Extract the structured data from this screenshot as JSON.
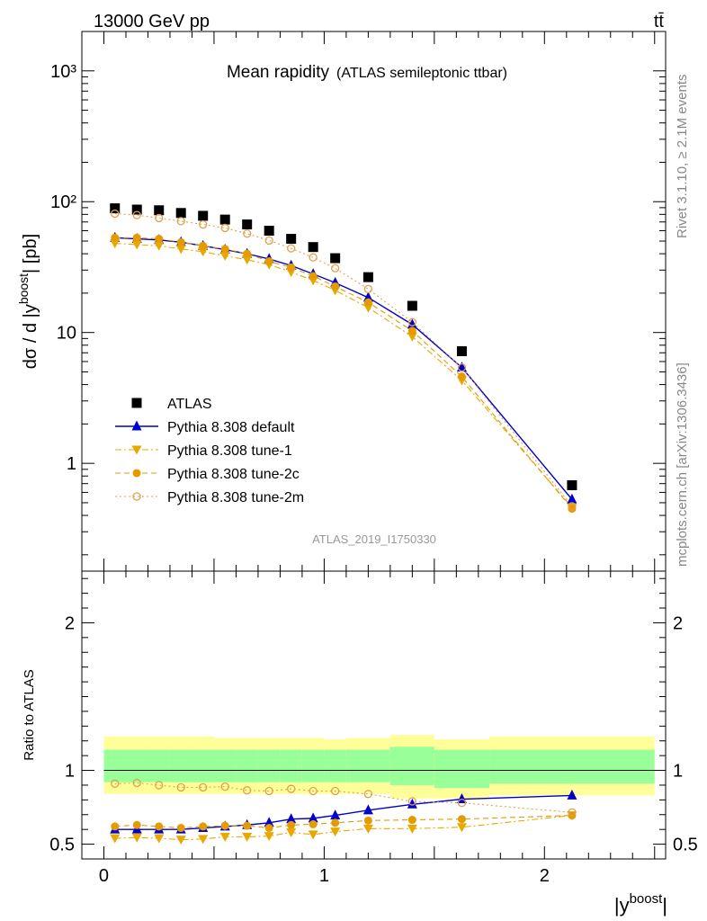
{
  "header": {
    "energy_label": "13000 GeV pp",
    "process_label": "tt̄",
    "side_label_top": "Rivet 3.1.10, ≥ 2.1M events",
    "side_label_bottom": "mcplots.cern.ch [arXiv:1306.3436]"
  },
  "chart_data": [
    {
      "type": "scatter",
      "title": "Mean rapidity",
      "subtitle": "(ATLAS semileptonic ttbar)",
      "ylabel": "dσ / d |y^boost| [pb]",
      "analysis_label": "ATLAS_2019_I1750330",
      "y_scale": "log",
      "xlim": [
        -0.1,
        2.55
      ],
      "ylim": [
        0.15,
        2000
      ],
      "x_ticks": [
        "0",
        "1",
        "2"
      ],
      "y_ticks": [
        {
          "value": 1,
          "label": "1"
        },
        {
          "value": 10,
          "label": "10"
        },
        {
          "value": 100,
          "label": "10²"
        },
        {
          "value": 1000,
          "label": "10³"
        }
      ],
      "legend_position": "bottom-left",
      "x": [
        0.05,
        0.15,
        0.25,
        0.35,
        0.45,
        0.55,
        0.65,
        0.75,
        0.85,
        0.95,
        1.05,
        1.2,
        1.4,
        1.625,
        2.125
      ],
      "x_bins": [
        [
          0,
          0.1
        ],
        [
          0.1,
          0.2
        ],
        [
          0.2,
          0.3
        ],
        [
          0.3,
          0.4
        ],
        [
          0.4,
          0.5
        ],
        [
          0.5,
          0.6
        ],
        [
          0.6,
          0.7
        ],
        [
          0.7,
          0.8
        ],
        [
          0.8,
          0.9
        ],
        [
          0.9,
          1.0
        ],
        [
          1.0,
          1.1
        ],
        [
          1.1,
          1.3
        ],
        [
          1.3,
          1.5
        ],
        [
          1.5,
          1.75
        ],
        [
          1.75,
          2.5
        ]
      ],
      "series": [
        {
          "name": "ATLAS",
          "color": "#000000",
          "marker": "square",
          "line": "none",
          "values": [
            89,
            87,
            86,
            82,
            78,
            73,
            67,
            60,
            52,
            45,
            37,
            26.5,
            16,
            7.2,
            0.68
          ]
        },
        {
          "name": "Pythia 8.308 default",
          "color": "#0000cc",
          "marker": "triangle-up",
          "line": "solid",
          "values": [
            53,
            52,
            51,
            49,
            46,
            43,
            40,
            36.5,
            32.5,
            28,
            24,
            18.5,
            11.5,
            5.4,
            0.53
          ]
        },
        {
          "name": "Pythia 8.308 tune-1",
          "color": "#e8a800",
          "marker": "triangle-down",
          "line": "dashdot",
          "values": [
            48,
            47,
            46,
            43.5,
            41.5,
            38.5,
            36,
            33,
            29,
            25,
            21,
            15.5,
            9.3,
            4.3,
            0.46
          ]
        },
        {
          "name": "Pythia 8.308 tune-2c",
          "color": "#e39b00",
          "marker": "circle",
          "line": "dashed",
          "values": [
            53,
            53,
            52,
            49,
            46,
            43.5,
            40,
            35,
            31.5,
            27,
            22.5,
            17,
            10.3,
            4.6,
            0.45
          ]
        },
        {
          "name": "Pythia 8.308 tune-2m",
          "color": "#e0a050",
          "marker": "circle-open",
          "line": "dotted",
          "values": [
            81,
            79,
            75,
            71,
            67,
            63,
            57,
            50.5,
            44,
            37.5,
            31,
            21.5,
            12,
            5.4,
            0.47
          ]
        }
      ]
    },
    {
      "type": "line",
      "ylabel": "Ratio to ATLAS",
      "xlabel": "|y^boost|",
      "xlim": [
        -0.1,
        2.55
      ],
      "ylim": [
        0.4,
        2.35
      ],
      "x_ticks": [
        "0",
        "1",
        "2"
      ],
      "y_ticks": [
        {
          "value": 0.5,
          "label": "0.5"
        },
        {
          "value": 1,
          "label": "1"
        },
        {
          "value": 2,
          "label": "2"
        }
      ],
      "x": [
        0.05,
        0.15,
        0.25,
        0.35,
        0.45,
        0.55,
        0.65,
        0.75,
        0.85,
        0.95,
        1.05,
        1.2,
        1.4,
        1.625,
        2.125
      ],
      "x_bins": [
        [
          0,
          0.1
        ],
        [
          0.1,
          0.2
        ],
        [
          0.2,
          0.3
        ],
        [
          0.3,
          0.4
        ],
        [
          0.4,
          0.5
        ],
        [
          0.5,
          0.6
        ],
        [
          0.6,
          0.7
        ],
        [
          0.7,
          0.8
        ],
        [
          0.8,
          0.9
        ],
        [
          0.9,
          1.0
        ],
        [
          1.0,
          1.1
        ],
        [
          1.1,
          1.3
        ],
        [
          1.3,
          1.5
        ],
        [
          1.5,
          1.75
        ],
        [
          1.75,
          2.5
        ]
      ],
      "band_total": [
        [
          0.84,
          1.23
        ],
        [
          0.84,
          1.23
        ],
        [
          0.84,
          1.23
        ],
        [
          0.84,
          1.23
        ],
        [
          0.84,
          1.23
        ],
        [
          0.84,
          1.22
        ],
        [
          0.84,
          1.22
        ],
        [
          0.84,
          1.22
        ],
        [
          0.84,
          1.22
        ],
        [
          0.84,
          1.22
        ],
        [
          0.84,
          1.21
        ],
        [
          0.84,
          1.22
        ],
        [
          0.81,
          1.24
        ],
        [
          0.81,
          1.21
        ],
        [
          0.83,
          1.23
        ]
      ],
      "band_stat": [
        [
          0.92,
          1.14
        ],
        [
          0.92,
          1.14
        ],
        [
          0.92,
          1.14
        ],
        [
          0.92,
          1.14
        ],
        [
          0.92,
          1.14
        ],
        [
          0.92,
          1.14
        ],
        [
          0.92,
          1.14
        ],
        [
          0.92,
          1.14
        ],
        [
          0.92,
          1.14
        ],
        [
          0.92,
          1.14
        ],
        [
          0.92,
          1.14
        ],
        [
          0.92,
          1.14
        ],
        [
          0.9,
          1.16
        ],
        [
          0.88,
          1.14
        ],
        [
          0.91,
          1.14
        ]
      ],
      "series": [
        {
          "name": "Pythia 8.308 default",
          "color": "#0000cc",
          "marker": "triangle-up",
          "line": "solid",
          "values": [
            0.6,
            0.6,
            0.6,
            0.6,
            0.61,
            0.62,
            0.63,
            0.645,
            0.67,
            0.675,
            0.695,
            0.73,
            0.77,
            0.805,
            0.83
          ]
        },
        {
          "name": "Pythia 8.308 tune-1",
          "color": "#e8a800",
          "marker": "triangle-down",
          "line": "dashdot",
          "values": [
            0.54,
            0.545,
            0.54,
            0.53,
            0.535,
            0.55,
            0.55,
            0.555,
            0.58,
            0.565,
            0.585,
            0.605,
            0.605,
            0.615,
            0.695
          ]
        },
        {
          "name": "Pythia 8.308 tune-2c",
          "color": "#e39b00",
          "marker": "circle",
          "line": "dashed",
          "values": [
            0.62,
            0.63,
            0.62,
            0.61,
            0.62,
            0.625,
            0.625,
            0.61,
            0.63,
            0.635,
            0.645,
            0.66,
            0.665,
            0.67,
            0.695
          ]
        },
        {
          "name": "Pythia 8.308 tune-2m",
          "color": "#e0a050",
          "marker": "circle-open",
          "line": "dotted",
          "values": [
            0.91,
            0.915,
            0.9,
            0.885,
            0.885,
            0.89,
            0.865,
            0.86,
            0.875,
            0.86,
            0.86,
            0.84,
            0.79,
            0.78,
            0.715
          ]
        }
      ]
    }
  ]
}
